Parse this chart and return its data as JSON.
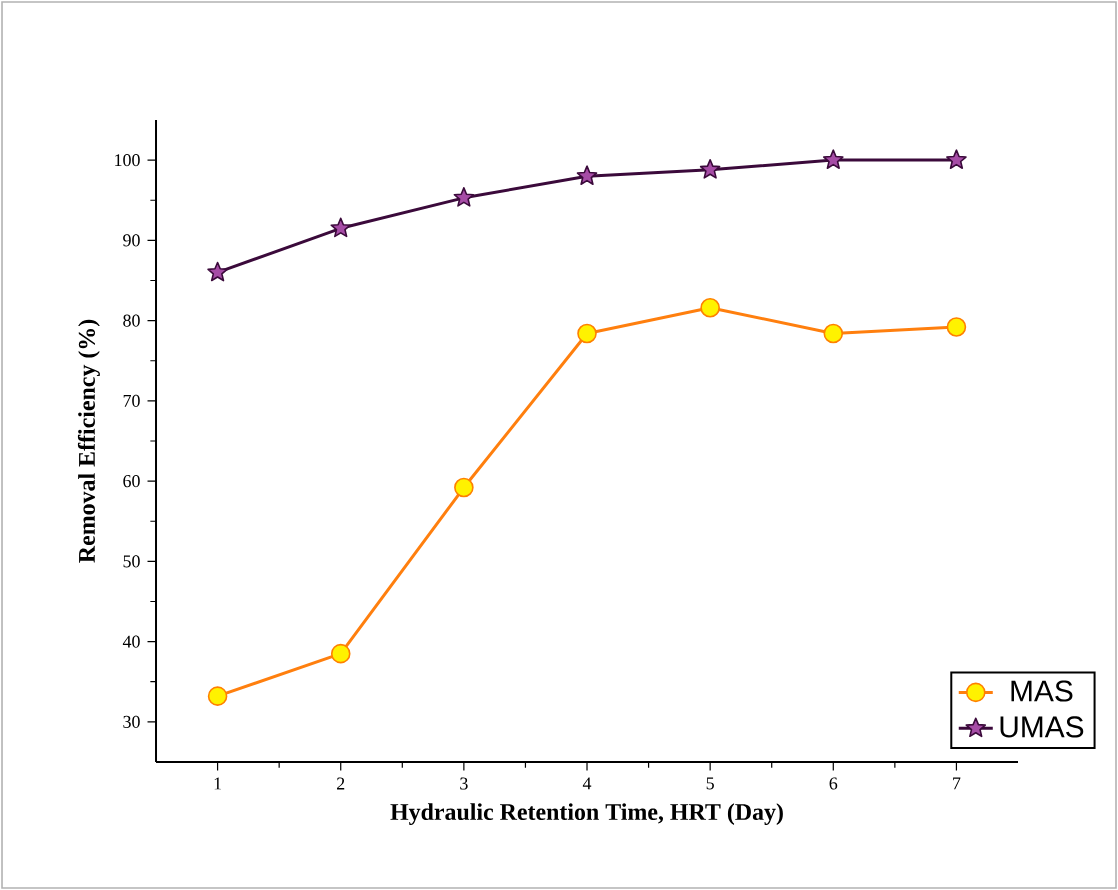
{
  "chart_data": {
    "type": "line",
    "xlabel": "Hydraulic Retention Time, HRT (Day)",
    "ylabel": "Removal Efficiency (%)",
    "x": [
      1,
      2,
      3,
      4,
      5,
      6,
      7
    ],
    "series": [
      {
        "name": "MAS",
        "color": "#ff7f0e",
        "marker": "circle",
        "values": [
          33.2,
          38.5,
          59.2,
          78.4,
          81.6,
          78.4,
          79.2
        ]
      },
      {
        "name": "UMAS",
        "color": "#3b0a3b",
        "marker": "star",
        "values": [
          86,
          91.5,
          95.3,
          98,
          98.8,
          100,
          100
        ]
      }
    ],
    "xlim": [
      0.5,
      7.5
    ],
    "ylim": [
      25,
      105
    ],
    "xticks": [
      1,
      2,
      3,
      4,
      5,
      6,
      7
    ],
    "yticks": [
      30,
      40,
      50,
      60,
      70,
      80,
      90,
      100
    ],
    "legend": "bottom right",
    "grid": false,
    "line_style": "solid"
  }
}
